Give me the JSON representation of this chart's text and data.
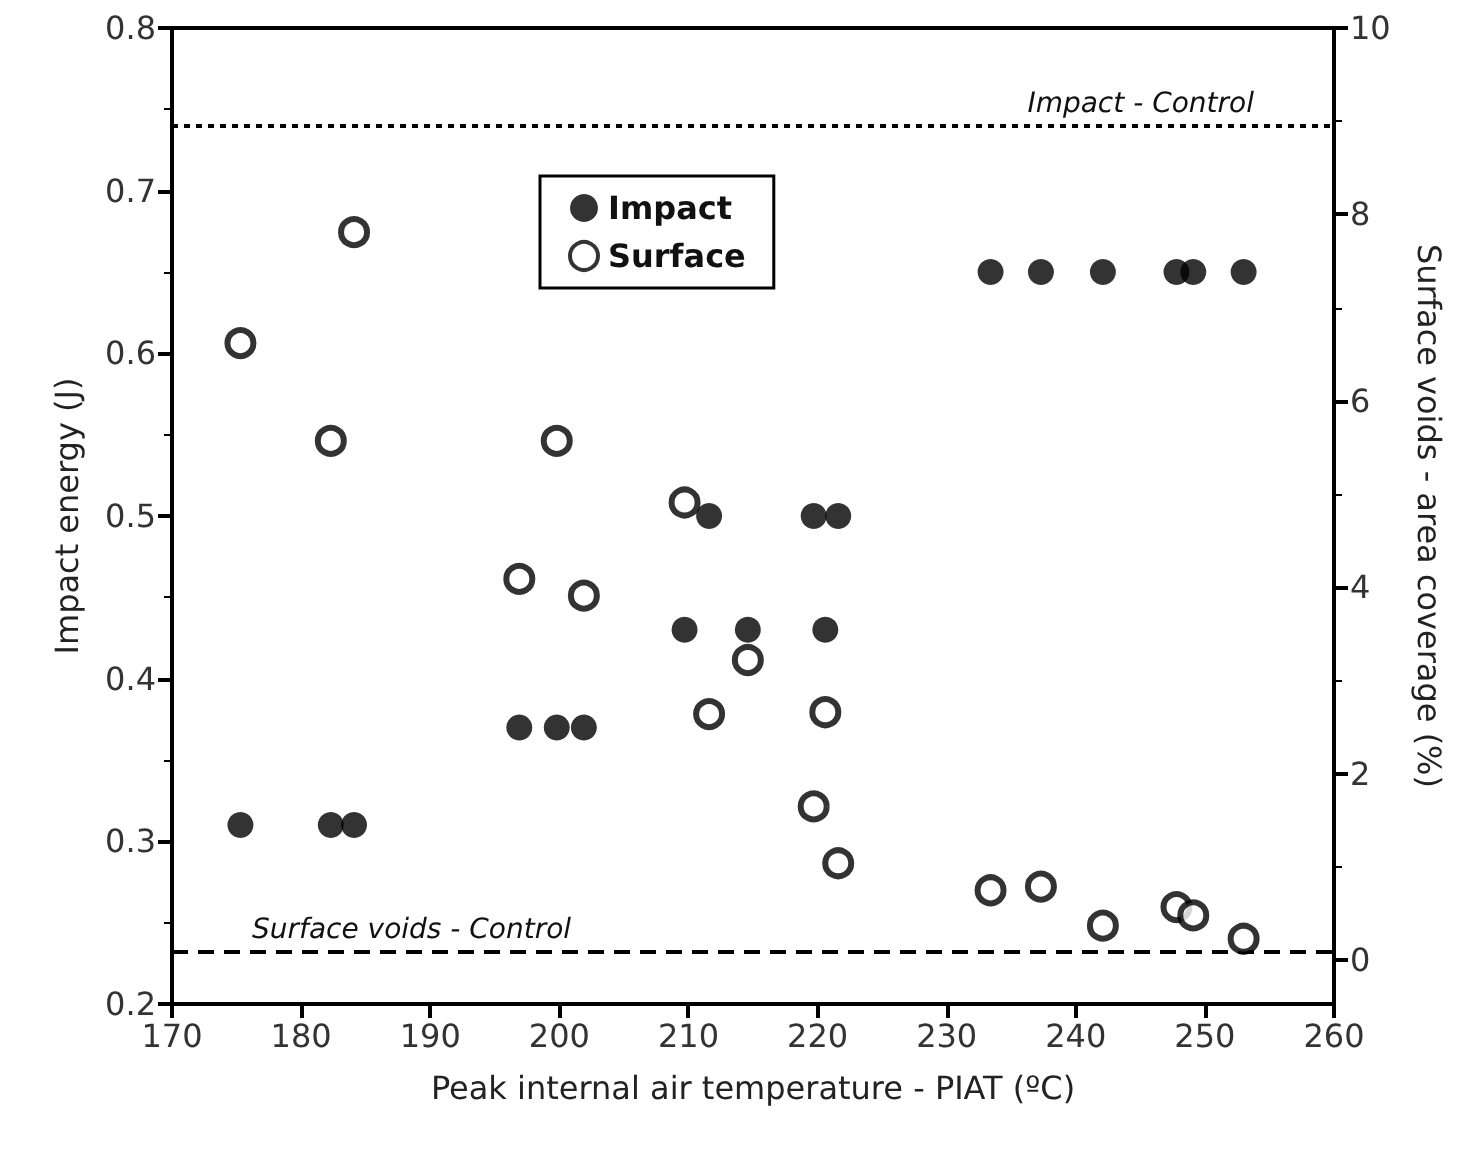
{
  "chart_data": {
    "type": "scatter",
    "xlabel": "Peak internal air temperature - PIAT (ºC)",
    "ylabel": "Impact energy (J)",
    "y2label": "Surface voids - area coverage (%)",
    "xlim": [
      170,
      260
    ],
    "xticks": [
      170,
      180,
      190,
      200,
      210,
      220,
      230,
      240,
      250,
      260
    ],
    "ylim": [
      0.2,
      0.8
    ],
    "yticks": [
      0.2,
      0.3,
      0.4,
      0.5,
      0.6,
      0.7,
      0.8
    ],
    "y2lim": [
      -0.47,
      10
    ],
    "y2ticks": [
      0,
      2,
      4,
      6,
      8,
      10
    ],
    "marker": "circle",
    "legend": "top",
    "grid": false,
    "series": [
      {
        "name": "Impact",
        "color": "#000000",
        "x": [
          175.3,
          182.3,
          184.1,
          196.9,
          199.8,
          201.9,
          209.7,
          211.6,
          214.6,
          219.7,
          221.6,
          220.6,
          233.4,
          237.3,
          242.1,
          247.8,
          249.1,
          253.0
        ],
        "values": [
          0.31,
          0.31,
          0.31,
          0.37,
          0.37,
          0.37,
          0.43,
          0.5,
          0.43,
          0.5,
          0.5,
          0.43,
          0.65,
          0.65,
          0.65,
          0.65,
          0.65,
          0.65
        ]
      },
      {
        "name": "Surface",
        "color": "#000000",
        "axis": "y2",
        "x": [
          184.1,
          175.3,
          182.3,
          199.8,
          209.7,
          196.9,
          201.9,
          214.6,
          211.6,
          220.6,
          219.7,
          221.6,
          233.4,
          237.3,
          242.1,
          247.8,
          249.1,
          253.0
        ],
        "values": [
          7.81,
          6.62,
          5.57,
          5.57,
          4.91,
          4.09,
          3.91,
          3.22,
          2.64,
          2.66,
          1.65,
          1.04,
          0.75,
          0.79,
          0.37,
          0.57,
          0.48,
          0.23
        ]
      }
    ],
    "ref_lines": [
      {
        "axis": "y",
        "value": 0.74,
        "label": "Impact - Control",
        "line_style": "dotted",
        "color": "#000000"
      },
      {
        "axis": "y2",
        "value": 0.09,
        "label": "Surface voids - Control",
        "line_style": "dashed",
        "color": "#000000"
      }
    ]
  }
}
